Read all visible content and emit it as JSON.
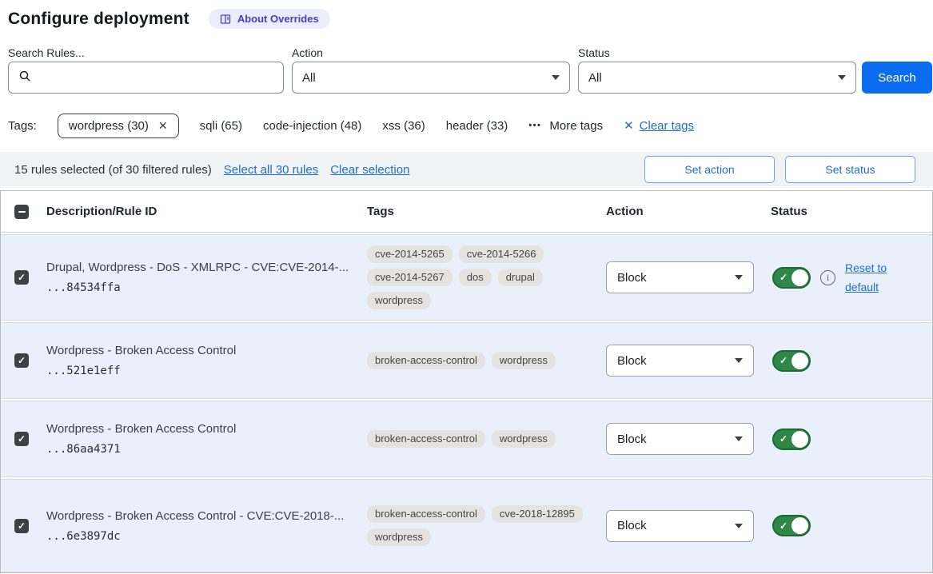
{
  "colors": {
    "accent": "#0b6cf0",
    "link": "#1c6ecf",
    "row_bg": "#e9f0fb",
    "toggle_green": "#2f8747",
    "toggle_border": "#1b6a34",
    "badge_bg": "#ecedfb",
    "badge_text": "#4541c5",
    "tag_bg": "#e4e3e0",
    "selbar_bg": "#f1f2f3"
  },
  "header": {
    "title": "Configure deployment",
    "about_badge": "About Overrides"
  },
  "filters": {
    "search_label": "Search Rules...",
    "action_label": "Action",
    "action_value": "All",
    "status_label": "Status",
    "status_value": "All",
    "search_button": "Search"
  },
  "tags_bar": {
    "label": "Tags:",
    "selected_tag": "wordpress (30)",
    "tags": [
      "sqli (65)",
      "code-injection (48)",
      "xss (36)",
      "header (33)"
    ],
    "more_tags_label": "More tags",
    "more_tags_dots": "•••",
    "clear_tags_label": "Clear tags",
    "close_glyph": "✕"
  },
  "selection_bar": {
    "summary": "15 rules selected (of 30 filtered rules)",
    "select_all_label": "Select all 30 rules",
    "clear_selection_label": "Clear selection",
    "set_action_label": "Set action",
    "set_status_label": "Set status"
  },
  "table": {
    "columns": [
      "Description/Rule ID",
      "Tags",
      "Action",
      "Status"
    ],
    "check_glyph": "✓",
    "info_glyph": "i",
    "rows": [
      {
        "description": "Drupal, Wordpress - DoS - XMLRPC - CVE:CVE-2014-...",
        "rule_id": "...84534ffa",
        "tags": [
          "cve-2014-5265",
          "cve-2014-5266",
          "cve-2014-5267",
          "dos",
          "drupal",
          "wordpress"
        ],
        "action": "Block",
        "enabled": true,
        "checked": true,
        "reset_label": "Reset to default"
      },
      {
        "description": "Wordpress - Broken Access Control",
        "rule_id": "...521e1eff",
        "tags": [
          "broken-access-control",
          "wordpress"
        ],
        "action": "Block",
        "enabled": true,
        "checked": true,
        "reset_label": null
      },
      {
        "description": "Wordpress - Broken Access Control",
        "rule_id": "...86aa4371",
        "tags": [
          "broken-access-control",
          "wordpress"
        ],
        "action": "Block",
        "enabled": true,
        "checked": true,
        "reset_label": null
      },
      {
        "description": "Wordpress - Broken Access Control - CVE:CVE-2018-...",
        "rule_id": "...6e3897dc",
        "tags": [
          "broken-access-control",
          "cve-2018-12895",
          "wordpress"
        ],
        "action": "Block",
        "enabled": true,
        "checked": true,
        "reset_label": null
      }
    ]
  }
}
